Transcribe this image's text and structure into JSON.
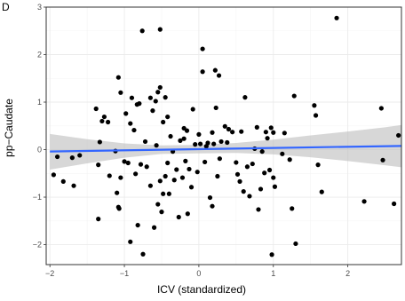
{
  "panel_label": "D",
  "chart_data": {
    "type": "scatter",
    "xlabel": "ICV (standardized)",
    "ylabel": "pp−Caudate",
    "xlim": [
      -2.05,
      2.72
    ],
    "ylim": [
      -2.42,
      3.0
    ],
    "x_ticks": [
      -2,
      -1,
      0,
      1,
      2
    ],
    "y_ticks": [
      -2,
      -1,
      0,
      1,
      2,
      3
    ],
    "x_tick_labels": [
      "−2",
      "−1",
      "0",
      "1",
      "2"
    ],
    "y_tick_labels": [
      "−2",
      "−1",
      "0",
      "1",
      "2",
      "3"
    ],
    "grid": true,
    "colors": {
      "points": "#000000",
      "fit_line": "#3366ff",
      "ribbon": "#bdbdbd"
    },
    "fit": {
      "intercept": 0.01,
      "slope": 0.025,
      "ci": [
        {
          "x": -2.0,
          "lo": -0.42,
          "hi": 0.33
        },
        {
          "x": -1.5,
          "lo": -0.29,
          "hi": 0.22
        },
        {
          "x": -1.0,
          "lo": -0.17,
          "hi": 0.13
        },
        {
          "x": -0.5,
          "lo": -0.09,
          "hi": 0.09
        },
        {
          "x": 0.0,
          "lo": -0.08,
          "hi": 0.1
        },
        {
          "x": 0.5,
          "lo": -0.07,
          "hi": 0.14
        },
        {
          "x": 1.0,
          "lo": -0.1,
          "hi": 0.21
        },
        {
          "x": 1.5,
          "lo": -0.16,
          "hi": 0.3
        },
        {
          "x": 2.0,
          "lo": -0.24,
          "hi": 0.38
        },
        {
          "x": 2.5,
          "lo": -0.33,
          "hi": 0.47
        },
        {
          "x": 2.72,
          "lo": -0.37,
          "hi": 0.52
        }
      ]
    },
    "points": [
      {
        "x": -1.95,
        "y": -0.53
      },
      {
        "x": -1.9,
        "y": -0.15
      },
      {
        "x": -1.82,
        "y": -0.67
      },
      {
        "x": -1.7,
        "y": -0.17
      },
      {
        "x": -1.68,
        "y": -0.76
      },
      {
        "x": -1.6,
        "y": -0.12
      },
      {
        "x": -1.38,
        "y": 0.86
      },
      {
        "x": -1.35,
        "y": -0.32
      },
      {
        "x": -1.33,
        "y": 0.16
      },
      {
        "x": -1.3,
        "y": 0.6
      },
      {
        "x": -1.27,
        "y": 0.69
      },
      {
        "x": -1.22,
        "y": 0.58
      },
      {
        "x": -1.35,
        "y": -1.46
      },
      {
        "x": -1.2,
        "y": -0.55
      },
      {
        "x": -1.12,
        "y": -0.03
      },
      {
        "x": -1.1,
        "y": -0.91
      },
      {
        "x": -1.08,
        "y": -1.21
      },
      {
        "x": -1.05,
        "y": -0.59
      },
      {
        "x": -1.0,
        "y": -0.25
      },
      {
        "x": -0.95,
        "y": -0.28
      },
      {
        "x": -0.92,
        "y": -1.94
      },
      {
        "x": -1.07,
        "y": -1.24
      },
      {
        "x": -0.85,
        "y": -0.51
      },
      {
        "x": -0.82,
        "y": -1.59
      },
      {
        "x": -1.08,
        "y": 1.52
      },
      {
        "x": -1.05,
        "y": 1.2
      },
      {
        "x": -0.98,
        "y": 0.76
      },
      {
        "x": -0.92,
        "y": 0.55
      },
      {
        "x": -0.9,
        "y": 1.09
      },
      {
        "x": -0.87,
        "y": 0.41
      },
      {
        "x": -0.83,
        "y": 0.95
      },
      {
        "x": -0.8,
        "y": 0.97
      },
      {
        "x": -0.78,
        "y": -0.31
      },
      {
        "x": -0.75,
        "y": -2.2
      },
      {
        "x": -0.76,
        "y": 2.5
      },
      {
        "x": -0.72,
        "y": 0.17
      },
      {
        "x": -0.7,
        "y": -0.36
      },
      {
        "x": -0.65,
        "y": -0.76
      },
      {
        "x": -0.62,
        "y": 0.82
      },
      {
        "x": -0.6,
        "y": -1.64
      },
      {
        "x": -0.57,
        "y": 0.09
      },
      {
        "x": -0.55,
        "y": -1.15
      },
      {
        "x": -0.52,
        "y": -0.66
      },
      {
        "x": -0.5,
        "y": -1.31
      },
      {
        "x": -0.48,
        "y": -0.93
      },
      {
        "x": -0.45,
        "y": -0.56
      },
      {
        "x": -0.42,
        "y": -0.28
      },
      {
        "x": -0.4,
        "y": -0.93
      },
      {
        "x": -0.52,
        "y": 2.53
      },
      {
        "x": -0.65,
        "y": 1.09
      },
      {
        "x": -0.58,
        "y": 1.02
      },
      {
        "x": -0.55,
        "y": 1.21
      },
      {
        "x": -0.52,
        "y": 1.31
      },
      {
        "x": -0.48,
        "y": 0.58
      },
      {
        "x": -0.45,
        "y": 1.1
      },
      {
        "x": -0.42,
        "y": 0.69
      },
      {
        "x": -0.38,
        "y": 0.28
      },
      {
        "x": -0.35,
        "y": -0.04
      },
      {
        "x": -0.33,
        "y": -0.64
      },
      {
        "x": -0.3,
        "y": -0.42
      },
      {
        "x": -0.27,
        "y": -1.42
      },
      {
        "x": -0.25,
        "y": 0.19
      },
      {
        "x": -0.22,
        "y": -0.59
      },
      {
        "x": -0.2,
        "y": 0.23
      },
      {
        "x": -0.2,
        "y": 0.45
      },
      {
        "x": -0.18,
        "y": -0.24
      },
      {
        "x": -0.16,
        "y": 0.4
      },
      {
        "x": -0.15,
        "y": -1.35
      },
      {
        "x": -0.13,
        "y": -0.41
      },
      {
        "x": -0.1,
        "y": -0.79
      },
      {
        "x": -0.08,
        "y": 0.85
      },
      {
        "x": -0.05,
        "y": 0.11
      },
      {
        "x": -0.02,
        "y": -0.47
      },
      {
        "x": 0.0,
        "y": 0.32
      },
      {
        "x": 0.02,
        "y": 0.12
      },
      {
        "x": 0.05,
        "y": 1.64
      },
      {
        "x": 0.05,
        "y": 2.12
      },
      {
        "x": 0.08,
        "y": -0.26
      },
      {
        "x": 0.1,
        "y": 0.07
      },
      {
        "x": 0.12,
        "y": 0.14
      },
      {
        "x": 0.15,
        "y": -1.01
      },
      {
        "x": 0.18,
        "y": -1.19
      },
      {
        "x": 0.18,
        "y": 0.36
      },
      {
        "x": 0.2,
        "y": 0.12
      },
      {
        "x": 0.22,
        "y": 1.67
      },
      {
        "x": 0.23,
        "y": 0.88
      },
      {
        "x": 0.25,
        "y": -0.56
      },
      {
        "x": 0.27,
        "y": 1.56
      },
      {
        "x": 0.28,
        "y": -0.19
      },
      {
        "x": 0.3,
        "y": 0.17
      },
      {
        "x": 0.35,
        "y": 0.49
      },
      {
        "x": 0.38,
        "y": 0.15
      },
      {
        "x": 0.4,
        "y": 0.43
      },
      {
        "x": 0.45,
        "y": 0.37
      },
      {
        "x": 0.5,
        "y": -0.27
      },
      {
        "x": 0.52,
        "y": -0.52
      },
      {
        "x": 0.55,
        "y": -0.67
      },
      {
        "x": 0.57,
        "y": 0.38
      },
      {
        "x": 0.6,
        "y": -0.88
      },
      {
        "x": 0.62,
        "y": 1.1
      },
      {
        "x": 0.65,
        "y": -0.36
      },
      {
        "x": 0.68,
        "y": -0.98
      },
      {
        "x": 0.72,
        "y": -0.3
      },
      {
        "x": 0.75,
        "y": 0.02
      },
      {
        "x": 0.78,
        "y": 0.47
      },
      {
        "x": 0.8,
        "y": -1.26
      },
      {
        "x": 0.83,
        "y": -0.83
      },
      {
        "x": 0.85,
        "y": -0.04
      },
      {
        "x": 0.88,
        "y": -0.49
      },
      {
        "x": 0.9,
        "y": 0.37
      },
      {
        "x": 0.92,
        "y": 0.24
      },
      {
        "x": 0.95,
        "y": -0.43
      },
      {
        "x": 0.97,
        "y": 0.46
      },
      {
        "x": 1.0,
        "y": 0.36
      },
      {
        "x": 1.0,
        "y": -0.59
      },
      {
        "x": 1.02,
        "y": -0.78
      },
      {
        "x": 0.98,
        "y": -2.21
      },
      {
        "x": 1.12,
        "y": -0.09
      },
      {
        "x": 1.15,
        "y": 0.35
      },
      {
        "x": 1.22,
        "y": -0.21
      },
      {
        "x": 1.25,
        "y": -1.24
      },
      {
        "x": 1.28,
        "y": 1.13
      },
      {
        "x": 1.3,
        "y": -1.98
      },
      {
        "x": 1.55,
        "y": 0.93
      },
      {
        "x": 1.57,
        "y": 0.72
      },
      {
        "x": 1.6,
        "y": -0.32
      },
      {
        "x": 1.65,
        "y": -0.89
      },
      {
        "x": 1.85,
        "y": 2.77
      },
      {
        "x": 2.22,
        "y": -1.09
      },
      {
        "x": 2.45,
        "y": 0.87
      },
      {
        "x": 2.47,
        "y": -0.22
      },
      {
        "x": 2.62,
        "y": -1.14
      },
      {
        "x": 2.68,
        "y": 0.3
      }
    ]
  }
}
